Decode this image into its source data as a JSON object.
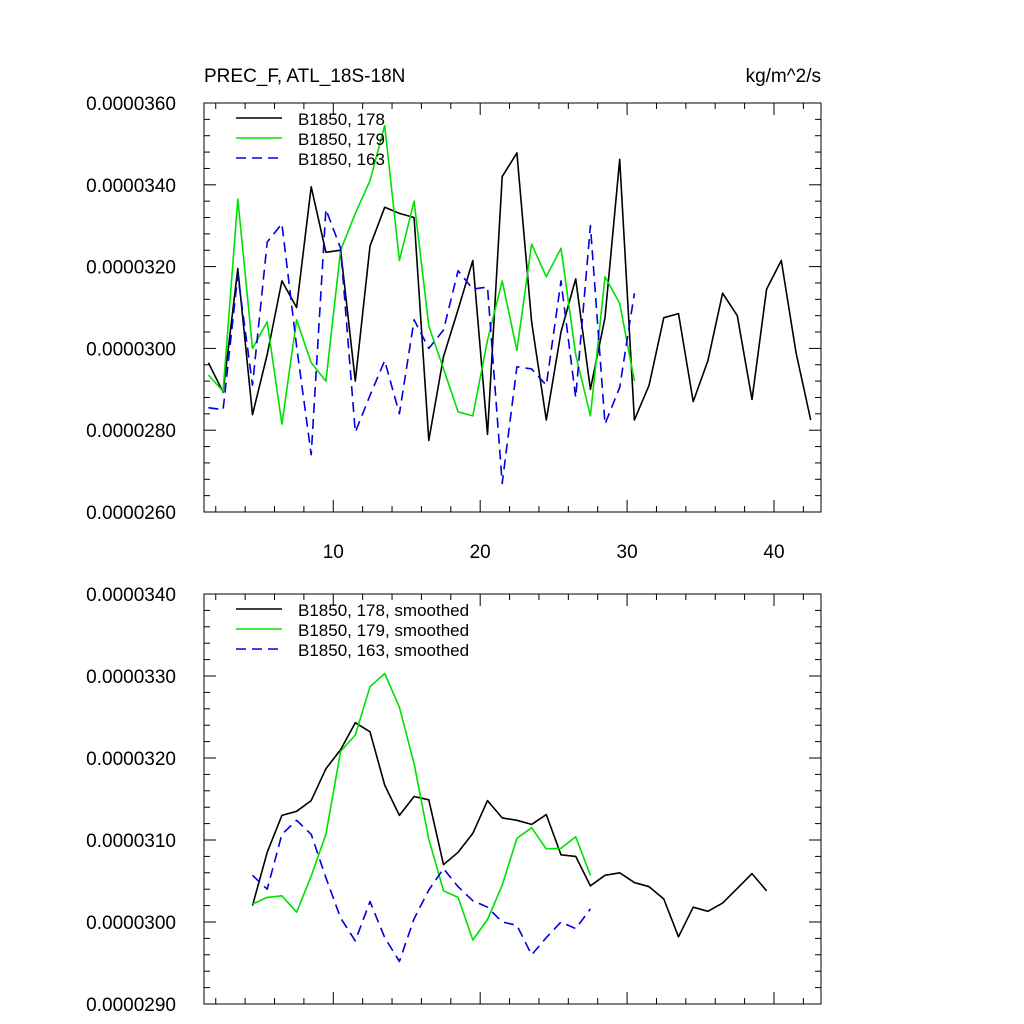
{
  "colors": {
    "black": "#000000",
    "green": "#00e000",
    "blue": "#0000e0"
  },
  "chart_data": [
    {
      "type": "line",
      "title": "PREC_F, ATL_18S-18N",
      "units": "kg/m^2/s",
      "xlabel": "",
      "ylabel": "",
      "xlim": [
        1.2,
        43.2
      ],
      "ylim": [
        2.6e-05,
        3.6e-05
      ],
      "x_major_ticks": [
        10,
        20,
        30,
        40
      ],
      "x_tick_labels": [
        "10",
        "20",
        "30",
        "40"
      ],
      "y_major_ticks": [
        2.6e-05,
        2.8e-05,
        3e-05,
        3.2e-05,
        3.4e-05,
        3.6e-05
      ],
      "y_tick_labels": [
        "0.0000260",
        "0.0000280",
        "0.0000300",
        "0.0000320",
        "0.0000340",
        "0.0000360"
      ],
      "legend_position": "top-left",
      "series": [
        {
          "name": "B1850, 178",
          "color": "#000000",
          "dash": "solid",
          "x": [
            1.5,
            2.5,
            3.5,
            4.5,
            5.5,
            6.5,
            7.5,
            8.5,
            9.5,
            10.5,
            11.5,
            12.5,
            13.5,
            14.5,
            15.5,
            16.5,
            17.5,
            18.5,
            19.5,
            20.5,
            21.5,
            22.5,
            23.5,
            24.5,
            25.5,
            26.5,
            27.5,
            28.5,
            29.5,
            30.5,
            31.5,
            32.5,
            33.5,
            34.5,
            35.5,
            36.5,
            37.5,
            38.5,
            39.5,
            40.5,
            41.5,
            42.5
          ],
          "values": [
            2.965e-05,
            2.893e-05,
            3.195e-05,
            2.838e-05,
            2.985e-05,
            3.165e-05,
            3.1e-05,
            3.395e-05,
            3.235e-05,
            3.24e-05,
            2.92e-05,
            3.25e-05,
            3.345e-05,
            3.33e-05,
            3.32e-05,
            2.775e-05,
            2.98e-05,
            3.095e-05,
            3.215e-05,
            2.79e-05,
            3.42e-05,
            3.478e-05,
            3.065e-05,
            2.825e-05,
            3.04e-05,
            3.17e-05,
            2.9e-05,
            3.075e-05,
            3.462e-05,
            2.825e-05,
            2.91e-05,
            3.075e-05,
            3.085e-05,
            2.87e-05,
            2.97e-05,
            3.135e-05,
            3.08e-05,
            2.875e-05,
            3.145e-05,
            3.215e-05,
            2.99e-05,
            2.825e-05
          ]
        },
        {
          "name": "B1850, 179",
          "color": "#00e000",
          "dash": "solid",
          "x": [
            1.5,
            2.5,
            3.5,
            4.5,
            5.5,
            6.5,
            7.5,
            8.5,
            9.5,
            10.5,
            11.5,
            12.5,
            13.5,
            14.5,
            15.5,
            16.5,
            17.5,
            18.5,
            19.5,
            20.5,
            21.5,
            22.5,
            23.5,
            24.5,
            25.5,
            26.5,
            27.5,
            28.5,
            29.5,
            30.5
          ],
          "values": [
            2.935e-05,
            2.895e-05,
            3.365e-05,
            3e-05,
            3.065e-05,
            2.815e-05,
            3.07e-05,
            2.965e-05,
            2.92e-05,
            3.24e-05,
            3.33e-05,
            3.41e-05,
            3.545e-05,
            3.215e-05,
            3.36e-05,
            3.055e-05,
            2.95e-05,
            2.845e-05,
            2.835e-05,
            3.02e-05,
            3.165e-05,
            2.995e-05,
            3.255e-05,
            3.175e-05,
            3.245e-05,
            2.985e-05,
            2.835e-05,
            3.175e-05,
            3.11e-05,
            2.92e-05
          ]
        },
        {
          "name": "B1850, 163",
          "color": "#0000e0",
          "dash": "dashed",
          "x": [
            1.5,
            2.5,
            3.5,
            4.5,
            5.5,
            6.5,
            7.5,
            8.5,
            9.5,
            10.5,
            11.5,
            12.5,
            13.5,
            14.5,
            15.5,
            16.5,
            17.5,
            18.5,
            19.5,
            20.5,
            21.5,
            22.5,
            23.5,
            24.5,
            25.5,
            26.5,
            27.5,
            28.5,
            29.5,
            30.5
          ],
          "values": [
            2.855e-05,
            2.85e-05,
            3.18e-05,
            2.91e-05,
            3.26e-05,
            3.305e-05,
            3.005e-05,
            2.74e-05,
            3.34e-05,
            3.245e-05,
            2.795e-05,
            2.885e-05,
            2.97e-05,
            2.84e-05,
            3.07e-05,
            3e-05,
            3.045e-05,
            3.19e-05,
            3.145e-05,
            3.15e-05,
            2.67e-05,
            2.955e-05,
            2.95e-05,
            2.91e-05,
            3.165e-05,
            2.88e-05,
            3.3e-05,
            2.815e-05,
            2.905e-05,
            3.135e-05
          ]
        }
      ]
    },
    {
      "type": "line",
      "title": "",
      "xlabel": "",
      "ylabel": "",
      "xlim": [
        1.2,
        43.2
      ],
      "ylim": [
        2.9e-05,
        3.4e-05
      ],
      "x_major_ticks": [
        10,
        20,
        30,
        40
      ],
      "x_tick_labels": [
        "",
        "",
        "",
        ""
      ],
      "y_major_ticks": [
        2.9e-05,
        3e-05,
        3.1e-05,
        3.2e-05,
        3.3e-05,
        3.4e-05
      ],
      "y_tick_labels": [
        "0.0000290",
        "0.0000300",
        "0.0000310",
        "0.0000320",
        "0.0000330",
        "0.0000340"
      ],
      "legend_position": "top-left",
      "series": [
        {
          "name": "B1850, 178, smoothed",
          "color": "#000000",
          "dash": "solid",
          "x": [
            4.5,
            5.5,
            6.5,
            7.5,
            8.5,
            9.5,
            10.5,
            11.5,
            12.5,
            13.5,
            14.5,
            15.5,
            16.5,
            17.5,
            18.5,
            19.5,
            20.5,
            21.5,
            22.5,
            23.5,
            24.5,
            25.5,
            26.5,
            27.5,
            28.5,
            29.5,
            30.5,
            31.5,
            32.5,
            33.5,
            34.5,
            35.5,
            36.5,
            37.5,
            38.5,
            39.5
          ],
          "values": [
            3.02e-05,
            3.085e-05,
            3.13e-05,
            3.135e-05,
            3.148e-05,
            3.187e-05,
            3.21e-05,
            3.243e-05,
            3.232e-05,
            3.167e-05,
            3.13e-05,
            3.153e-05,
            3.149e-05,
            3.07e-05,
            3.085e-05,
            3.108e-05,
            3.148e-05,
            3.127e-05,
            3.124e-05,
            3.119e-05,
            3.131e-05,
            3.082e-05,
            3.08e-05,
            3.044e-05,
            3.057e-05,
            3.06e-05,
            3.048e-05,
            3.043e-05,
            3.028e-05,
            2.982e-05,
            3.018e-05,
            3.013e-05,
            3.023e-05,
            3.041e-05,
            3.059e-05,
            3.038e-05
          ]
        },
        {
          "name": "B1850, 179, smoothed",
          "color": "#00e000",
          "dash": "solid",
          "x": [
            4.5,
            5.5,
            6.5,
            7.5,
            8.5,
            9.5,
            10.5,
            11.5,
            12.5,
            13.5,
            14.5,
            15.5,
            16.5,
            17.5,
            18.5,
            19.5,
            20.5,
            21.5,
            22.5,
            23.5,
            24.5,
            25.5,
            26.5,
            27.5
          ],
          "values": [
            3.022e-05,
            3.03e-05,
            3.032e-05,
            3.012e-05,
            3.056e-05,
            3.107e-05,
            3.208e-05,
            3.228e-05,
            3.287e-05,
            3.303e-05,
            3.262e-05,
            3.193e-05,
            3.101e-05,
            3.038e-05,
            3.03e-05,
            2.978e-05,
            3.003e-05,
            3.045e-05,
            3.102e-05,
            3.115e-05,
            3.089e-05,
            3.09e-05,
            3.104e-05,
            3.057e-05
          ]
        },
        {
          "name": "B1850, 163, smoothed",
          "color": "#0000e0",
          "dash": "dashed",
          "x": [
            4.5,
            5.5,
            6.5,
            7.5,
            8.5,
            9.5,
            10.5,
            11.5,
            12.5,
            13.5,
            14.5,
            15.5,
            16.5,
            17.5,
            18.5,
            19.5,
            20.5,
            21.5,
            22.5,
            23.5,
            24.5,
            25.5,
            26.5,
            27.5
          ],
          "values": [
            3.057e-05,
            3.04e-05,
            3.107e-05,
            3.124e-05,
            3.107e-05,
            3.054e-05,
            3.005e-05,
            2.977e-05,
            3.025e-05,
            2.981e-05,
            2.952e-05,
            3.004e-05,
            3.039e-05,
            3.065e-05,
            3.043e-05,
            3.026e-05,
            3.018e-05,
            3e-05,
            2.996e-05,
            2.96e-05,
            2.981e-05,
            3e-05,
            2.992e-05,
            3.016e-05
          ]
        }
      ]
    }
  ]
}
